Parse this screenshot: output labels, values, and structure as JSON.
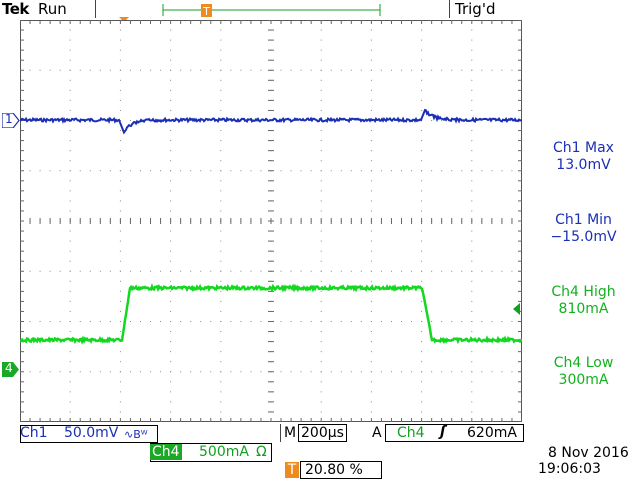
{
  "header": {
    "brand": "Tek",
    "run_state": "Run",
    "trigger_state": "Trig'd"
  },
  "markers": {
    "trigger_position": "T",
    "record_position": "T",
    "ch1_ref": "1",
    "ch4_ref": "4"
  },
  "measurements": [
    {
      "label": "Ch1 Max",
      "value": "13.0mV"
    },
    {
      "label": "Ch1 Min",
      "value": "−15.0mV"
    },
    {
      "label": "Ch4 High",
      "value": "810mA"
    },
    {
      "label": "Ch4 Low",
      "value": "300mA"
    }
  ],
  "readouts": {
    "ch1_name": "Ch1",
    "ch1_scale": "50.0mV",
    "ch1_coupling": "∿Bᵂ",
    "ch4_name": "Ch4",
    "ch4_scale": "500mA",
    "ch4_coupling": "Ω",
    "timebase_prefix": "M",
    "timebase": "200µs",
    "trigger_mode": "A",
    "trigger_source": "Ch4",
    "trigger_slope": "ʃ",
    "trigger_level": "620mA",
    "trigger_icon": "T",
    "trigger_position_pct": "20.80 %",
    "date": "8 Nov 2016",
    "time": "19:06:03"
  },
  "colors": {
    "ch1": "#1a2fb5",
    "ch4": "#13d820",
    "trigger": "#ef8a1e"
  }
}
